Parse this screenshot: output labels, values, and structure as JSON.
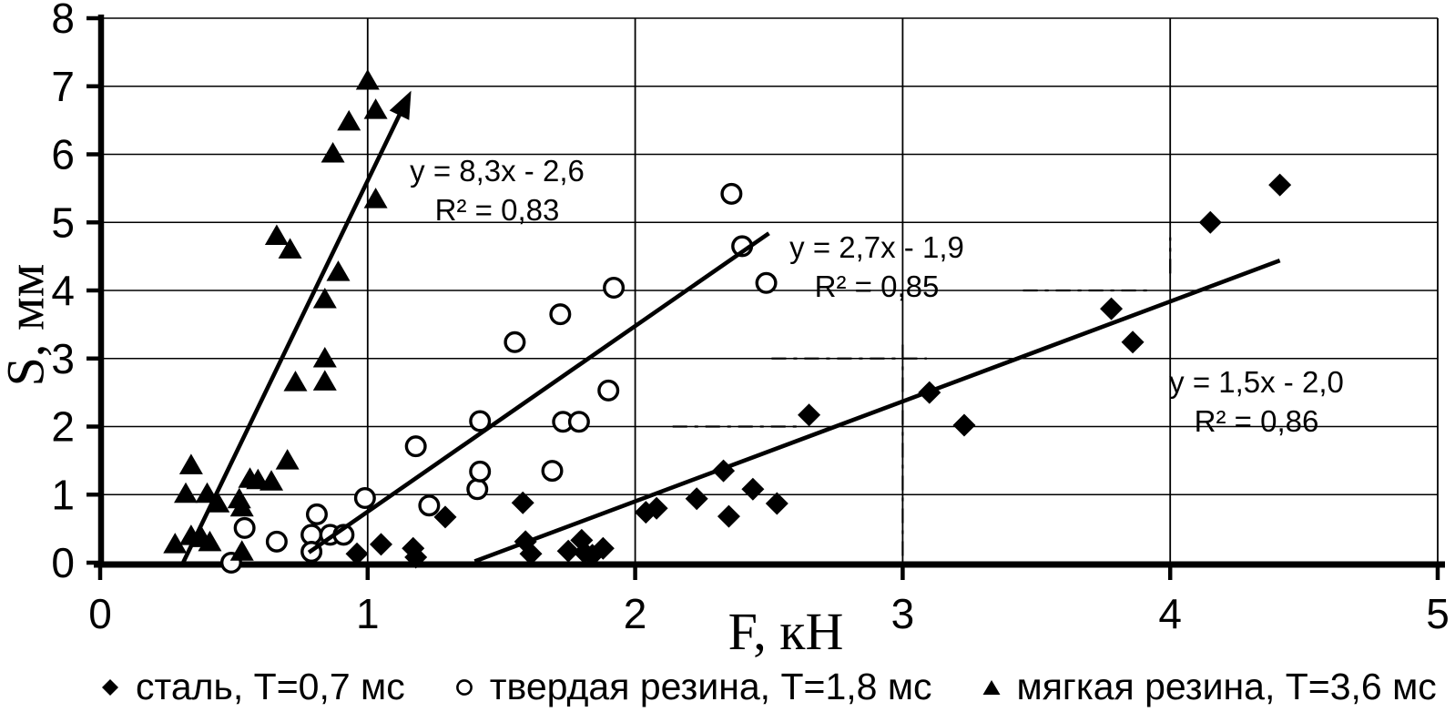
{
  "figure": {
    "background": "#ffffff",
    "ink_color": "#000000"
  },
  "chart_data": {
    "type": "scatter",
    "title": "",
    "xlabel": "F, кН",
    "ylabel": "S, мм",
    "xlim": [
      0,
      5
    ],
    "ylim": [
      0,
      8
    ],
    "grid": true,
    "legend_position": "bottom",
    "x_ticks": [
      0,
      1,
      2,
      3,
      4,
      5
    ],
    "x_tick_labels": [
      "0",
      "1",
      "2",
      "3",
      "4",
      "5"
    ],
    "y_ticks": [
      0,
      1,
      2,
      3,
      4,
      5,
      6,
      7,
      8
    ],
    "y_tick_labels": [
      "0",
      "1",
      "2",
      "3",
      "4",
      "5",
      "6",
      "7",
      "8"
    ],
    "series": [
      {
        "id": "steel",
        "name": "сталь, T=0,7 мс",
        "marker": "diamond-filled",
        "color": "#000000",
        "points": [
          [
            0.96,
            0.13
          ],
          [
            1.05,
            0.27
          ],
          [
            1.17,
            0.21
          ],
          [
            1.18,
            0.08
          ],
          [
            1.29,
            0.67
          ],
          [
            1.58,
            0.88
          ],
          [
            1.59,
            0.31
          ],
          [
            1.61,
            0.13
          ],
          [
            1.75,
            0.17
          ],
          [
            1.8,
            0.33
          ],
          [
            1.81,
            0.15
          ],
          [
            1.84,
            0.11
          ],
          [
            1.88,
            0.21
          ],
          [
            2.04,
            0.74
          ],
          [
            2.08,
            0.8
          ],
          [
            2.23,
            0.94
          ],
          [
            2.33,
            1.35
          ],
          [
            2.35,
            0.68
          ],
          [
            2.44,
            1.08
          ],
          [
            2.53,
            0.87
          ],
          [
            2.65,
            2.17
          ],
          [
            3.1,
            2.5
          ],
          [
            3.23,
            2.02
          ],
          [
            3.78,
            3.73
          ],
          [
            3.86,
            3.24
          ],
          [
            4.15,
            5.0
          ],
          [
            4.41,
            5.55
          ]
        ]
      },
      {
        "id": "hard_rubber",
        "name": "твердая резина, T=1,8 мс",
        "marker": "circle-open",
        "color": "#000000",
        "points": [
          [
            0.49,
            0.0
          ],
          [
            0.54,
            0.51
          ],
          [
            0.66,
            0.31
          ],
          [
            0.79,
            0.41
          ],
          [
            0.79,
            0.16
          ],
          [
            0.81,
            0.71
          ],
          [
            0.86,
            0.41
          ],
          [
            0.91,
            0.41
          ],
          [
            0.99,
            0.95
          ],
          [
            1.18,
            1.71
          ],
          [
            1.23,
            0.84
          ],
          [
            1.41,
            1.08
          ],
          [
            1.42,
            1.34
          ],
          [
            1.42,
            2.08
          ],
          [
            1.55,
            3.24
          ],
          [
            1.69,
            1.35
          ],
          [
            1.72,
            3.65
          ],
          [
            1.73,
            2.07
          ],
          [
            1.79,
            2.07
          ],
          [
            1.9,
            2.53
          ],
          [
            1.92,
            4.04
          ],
          [
            2.36,
            5.42
          ],
          [
            2.4,
            4.65
          ],
          [
            2.49,
            4.11
          ]
        ]
      },
      {
        "id": "soft_rubber",
        "name": "мягкая резина, T=3,6 мс",
        "marker": "triangle-filled",
        "color": "#000000",
        "points": [
          [
            0.28,
            0.28
          ],
          [
            0.34,
            0.4
          ],
          [
            0.38,
            0.37
          ],
          [
            0.41,
            0.31
          ],
          [
            0.53,
            0.17
          ],
          [
            0.32,
            1.02
          ],
          [
            0.4,
            1.02
          ],
          [
            0.44,
            0.88
          ],
          [
            0.34,
            1.44
          ],
          [
            0.52,
            0.94
          ],
          [
            0.53,
            0.82
          ],
          [
            0.56,
            1.24
          ],
          [
            0.59,
            1.22
          ],
          [
            0.64,
            1.2
          ],
          [
            0.7,
            1.51
          ],
          [
            0.73,
            2.66
          ],
          [
            0.84,
            2.67
          ],
          [
            0.84,
            3.01
          ],
          [
            0.84,
            3.88
          ],
          [
            0.89,
            4.28
          ],
          [
            0.66,
            4.81
          ],
          [
            0.71,
            4.61
          ],
          [
            0.87,
            6.02
          ],
          [
            0.93,
            6.49
          ],
          [
            1.0,
            7.09
          ],
          [
            1.03,
            6.66
          ],
          [
            1.03,
            5.35
          ]
        ]
      }
    ],
    "trendlines": [
      {
        "series": "soft_rubber",
        "equation": "y = 8,3x - 2,6",
        "r2": "R² = 0,83",
        "x1": 0.31,
        "y1": 0.0,
        "x2": 1.13,
        "y2": 6.67,
        "arrow": true
      },
      {
        "series": "hard_rubber",
        "equation": "y = 2,7x - 1,9",
        "r2": "R² = 0,85",
        "x1": 0.78,
        "y1": 0.15,
        "x2": 2.5,
        "y2": 4.84,
        "arrow": false
      },
      {
        "series": "steel",
        "equation": "y = 1,5x - 2,0",
        "r2": "R² = 0,86",
        "x1": 1.4,
        "y1": 0.02,
        "x2": 4.41,
        "y2": 4.44,
        "arrow": false
      }
    ],
    "dash_dot_segments": [
      {
        "orient": "h",
        "at": 2,
        "from": 2.14,
        "to": 2.62
      },
      {
        "orient": "h",
        "at": 3,
        "from": 2.51,
        "to": 3.09
      },
      {
        "orient": "h",
        "at": 4,
        "from": 3.45,
        "to": 3.93
      },
      {
        "orient": "v",
        "at": 3,
        "from": 0.1,
        "to": 3.25
      },
      {
        "orient": "v",
        "at": 4,
        "from": 4.25,
        "to": 4.78
      }
    ]
  },
  "legend": {
    "items": [
      {
        "marker": "diamond-filled",
        "label": "сталь, T=0,7 мс"
      },
      {
        "marker": "circle-open",
        "label": "твердая резина, T=1,8 мс"
      },
      {
        "marker": "triangle-filled",
        "label": "мягкая резина, T=3,6 мс"
      }
    ]
  }
}
